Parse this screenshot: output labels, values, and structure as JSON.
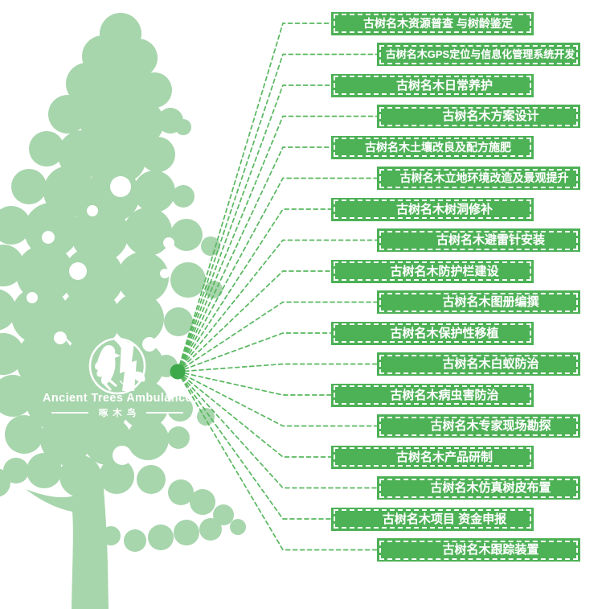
{
  "logo": {
    "title": "Ancient Trees Ambulance",
    "subtitle": "啄木鸟",
    "icon": "woodpecker-in-circle"
  },
  "colors": {
    "box_green": "#4db156",
    "tree_green": "#a7d5ac",
    "line_green": "#58b75f",
    "hub_dot_green": "#3da94a",
    "text_white": "#ffffff"
  },
  "services": [
    {
      "label": "古树名木资源普查 与树龄鉴定"
    },
    {
      "label": "古树名木GPS定位与信息化管理系统开发"
    },
    {
      "label": "古树名木日常养护"
    },
    {
      "label": "古树名木方案设计"
    },
    {
      "label": "古树名木土壤改良及配方施肥"
    },
    {
      "label": "古树名木立地环境改造及景观提升"
    },
    {
      "label": "古树名木树洞修补"
    },
    {
      "label": "古树名木避雷针安装"
    },
    {
      "label": "古树名木防护栏建设"
    },
    {
      "label": "古树名木图册编撰"
    },
    {
      "label": "古树名木保护性移植"
    },
    {
      "label": "古树名木白蚁防治"
    },
    {
      "label": "古树名木病虫害防治"
    },
    {
      "label": "古树名木专家现场勘探"
    },
    {
      "label": "古树名木产品研制"
    },
    {
      "label": "古树名木仿真树皮布置"
    },
    {
      "label": "古树名木项目 资金申报"
    },
    {
      "label": "古树名木跟踪装置"
    }
  ]
}
